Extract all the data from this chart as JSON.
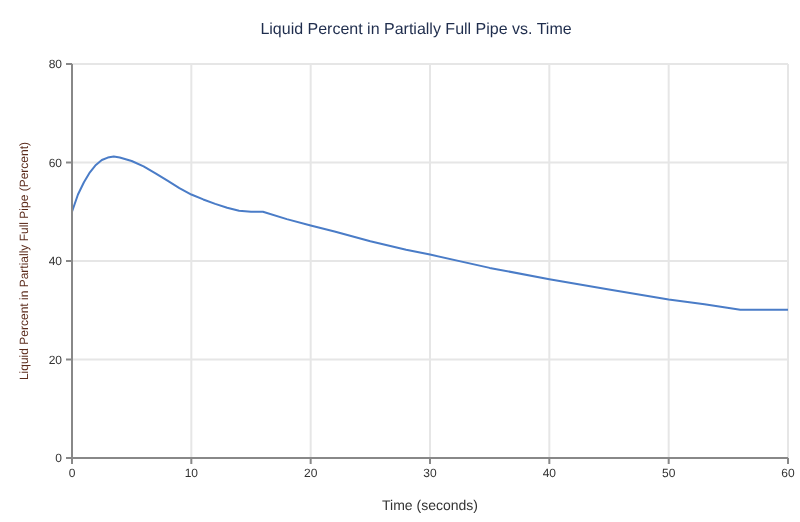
{
  "chart_data": {
    "type": "line",
    "title": "Liquid Percent in Partially Full Pipe vs. Time",
    "xlabel": "Time (seconds)",
    "ylabel": "Liquid Percent in Partially Full Pipe (Percent)",
    "x": [
      0,
      0.5,
      1,
      1.5,
      2,
      2.5,
      3,
      3.5,
      4,
      5,
      6,
      7,
      8,
      9,
      10,
      11,
      12,
      13,
      14,
      15,
      16,
      18,
      20,
      22,
      25,
      28,
      30,
      35,
      40,
      45,
      50,
      53,
      56,
      58,
      60
    ],
    "series": [
      {
        "color": "#4a7cc7",
        "values": [
          50,
          53.5,
          56,
          58,
          59.5,
          60.5,
          61,
          61.2,
          61,
          60.3,
          59.2,
          57.8,
          56.3,
          54.8,
          53.5,
          52.5,
          51.6,
          50.8,
          50.2,
          50,
          50,
          48.5,
          47.2,
          46,
          44,
          42.3,
          41.3,
          38.6,
          36.3,
          34.2,
          32.2,
          31.2,
          30.1,
          30.1,
          30.1
        ]
      }
    ],
    "xlim": [
      0,
      60
    ],
    "xticks": [
      0,
      10,
      20,
      30,
      40,
      50,
      60
    ],
    "ylim": [
      0,
      80
    ],
    "yticks": [
      0,
      20,
      40,
      60,
      80
    ],
    "grid": true,
    "legend": false,
    "marker": "none",
    "line_style": "solid"
  }
}
